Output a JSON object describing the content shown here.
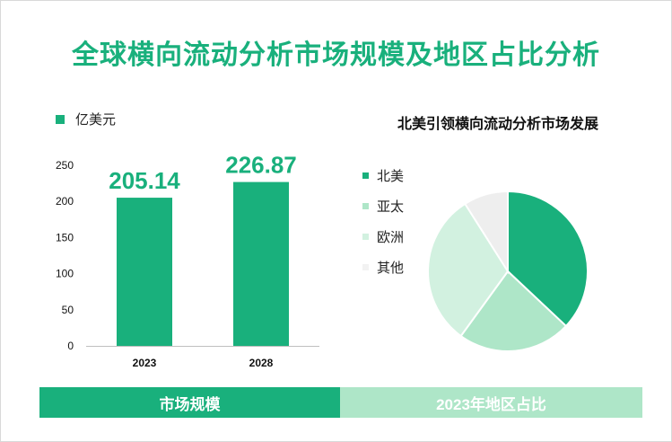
{
  "title": "全球横向流动分析市场规模及地区占比分析",
  "colors": {
    "primary": "#19b07c",
    "light": "#aee6c8",
    "slices": [
      "#19b07c",
      "#aee6c8",
      "#d2f1e0",
      "#eeeeee"
    ]
  },
  "chart_data": [
    {
      "type": "bar",
      "legend": "亿美元",
      "categories": [
        "2023",
        "2028"
      ],
      "values": [
        205.14,
        226.87
      ],
      "data_labels": [
        "205.14",
        "226.87"
      ],
      "ylim": [
        0,
        250
      ],
      "yticks": [
        "0",
        "50",
        "100",
        "150",
        "200",
        "250"
      ],
      "grid": false
    },
    {
      "type": "pie",
      "title": "北美引领横向流动分析市场发展",
      "labels": [
        "北美",
        "亚太",
        "欧洲",
        "其他"
      ],
      "values": [
        37,
        23,
        31,
        9
      ],
      "legend_position": "left"
    }
  ],
  "footer": {
    "left": "市场规模",
    "right": "2023年地区占比"
  }
}
